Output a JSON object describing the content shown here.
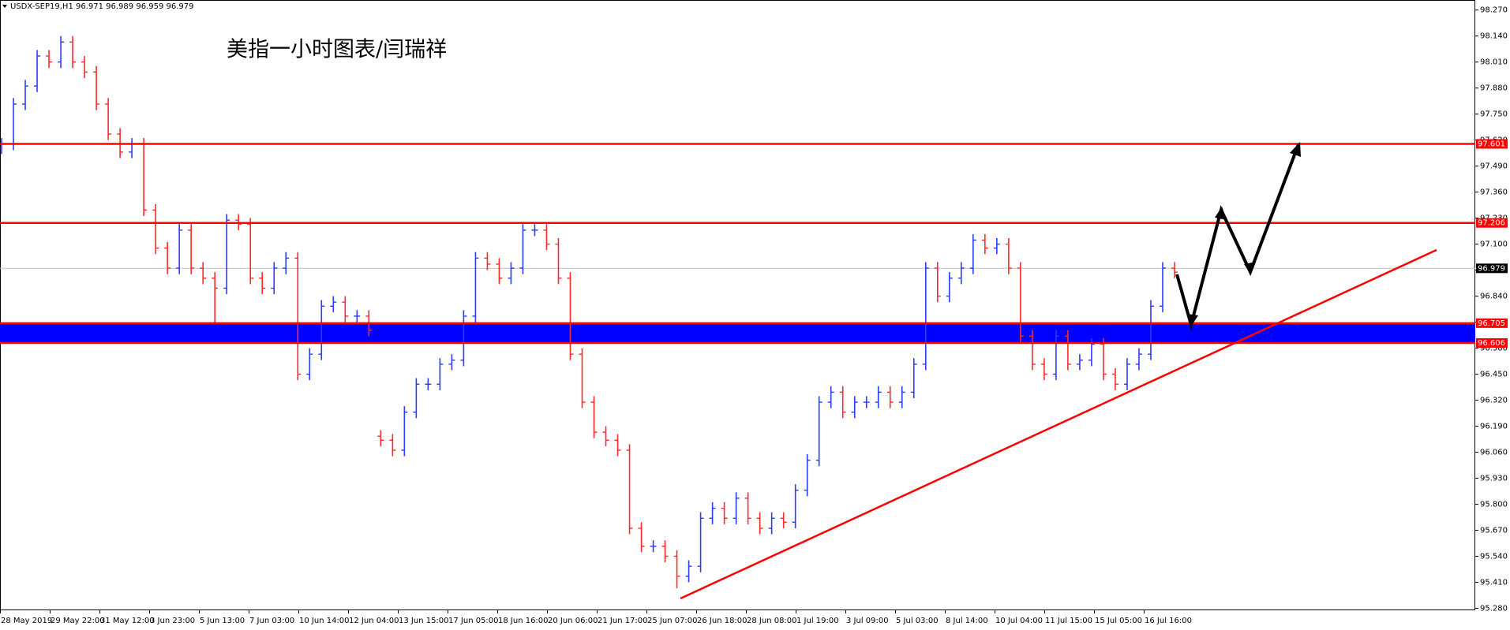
{
  "chart_data": {
    "type": "ohlc",
    "header": "USDX-SEP19,H1  96.971 96.989 96.959 96.979",
    "title": "美指一小时图表/闫瑞祥",
    "up_color": "#2a3cff",
    "down_color": "#ff2a2a",
    "level_color": "#ff0000",
    "band_color": "#0000ff",
    "last_color": "#c0c0c0",
    "ylim": [
      95.27,
      98.32
    ],
    "yticks": [
      {
        "value": 98.27,
        "label": "98.270"
      },
      {
        "value": 98.14,
        "label": "98.140"
      },
      {
        "value": 98.01,
        "label": "98.010"
      },
      {
        "value": 97.88,
        "label": "97.880"
      },
      {
        "value": 97.75,
        "label": "97.750"
      },
      {
        "value": 97.62,
        "label": "97.620"
      },
      {
        "value": 97.49,
        "label": "97.490"
      },
      {
        "value": 97.36,
        "label": "97.360"
      },
      {
        "value": 97.23,
        "label": "97.230"
      },
      {
        "value": 97.1,
        "label": "97.100"
      },
      {
        "value": 96.97,
        "label": "96.970"
      },
      {
        "value": 96.84,
        "label": "96.840"
      },
      {
        "value": 96.71,
        "label": "96.710"
      },
      {
        "value": 96.58,
        "label": "96.580"
      },
      {
        "value": 96.45,
        "label": "96.450"
      },
      {
        "value": 96.32,
        "label": "96.320"
      },
      {
        "value": 96.19,
        "label": "96.190"
      },
      {
        "value": 96.06,
        "label": "96.060"
      },
      {
        "value": 95.93,
        "label": "95.930"
      },
      {
        "value": 95.8,
        "label": "95.800"
      },
      {
        "value": 95.67,
        "label": "95.670"
      },
      {
        "value": 95.54,
        "label": "95.540"
      },
      {
        "value": 95.41,
        "label": "95.410"
      },
      {
        "value": 95.28,
        "label": "95.280"
      }
    ],
    "x_labels": [
      "28 May 2019",
      "29 May 22:00",
      "31 May 12:00",
      "3 Jun 23:00",
      "5 Jun 13:00",
      "7 Jun 03:00",
      "10 Jun 14:00",
      "12 Jun 04:00",
      "13 Jun 15:00",
      "17 Jun 05:00",
      "18 Jun 16:00",
      "20 Jun 06:00",
      "21 Jun 17:00",
      "25 Jun 07:00",
      "26 Jun 18:00",
      "28 Jun 08:00",
      "1 Jul 19:00",
      "3 Jul 09:00",
      "5 Jul 03:00",
      "8 Jul 14:00",
      "10 Jul 04:00",
      "11 Jul 15:00",
      "15 Jul 05:00",
      "16 Jul 16:00"
    ],
    "levels": [
      97.601,
      97.206,
      96.705,
      96.606
    ],
    "last": 96.979,
    "ohlc": [
      [
        97.58,
        97.63,
        97.55,
        97.6
      ],
      [
        97.6,
        97.83,
        97.57,
        97.8
      ],
      [
        97.8,
        97.92,
        97.77,
        97.89
      ],
      [
        97.89,
        98.07,
        97.86,
        98.04
      ],
      [
        98.04,
        98.07,
        97.98,
        98.01
      ],
      [
        98.01,
        98.14,
        97.98,
        98.11
      ],
      [
        98.11,
        98.14,
        97.98,
        98.01
      ],
      [
        98.01,
        98.04,
        97.93,
        97.96
      ],
      [
        97.96,
        97.99,
        97.77,
        97.8
      ],
      [
        97.8,
        97.83,
        97.62,
        97.65
      ],
      [
        97.65,
        97.68,
        97.53,
        97.56
      ],
      [
        97.56,
        97.63,
        97.53,
        97.6
      ],
      [
        97.6,
        97.63,
        97.24,
        97.27
      ],
      [
        97.27,
        97.3,
        97.05,
        97.08
      ],
      [
        97.08,
        97.11,
        96.95,
        96.98
      ],
      [
        96.98,
        97.2,
        96.95,
        97.17
      ],
      [
        97.17,
        97.2,
        96.95,
        96.98
      ],
      [
        96.98,
        97.01,
        96.9,
        96.93
      ],
      [
        96.93,
        96.96,
        96.7,
        96.88
      ],
      [
        96.88,
        97.25,
        96.85,
        97.22
      ],
      [
        97.22,
        97.25,
        97.17,
        97.2
      ],
      [
        97.2,
        97.23,
        96.9,
        96.93
      ],
      [
        96.93,
        96.96,
        96.85,
        96.88
      ],
      [
        96.88,
        97.01,
        96.85,
        96.98
      ],
      [
        96.98,
        97.06,
        96.95,
        97.03
      ],
      [
        97.03,
        97.06,
        96.42,
        96.45
      ],
      [
        96.45,
        96.58,
        96.42,
        96.55
      ],
      [
        96.55,
        96.82,
        96.52,
        96.79
      ],
      [
        96.79,
        96.84,
        96.76,
        96.81
      ],
      [
        96.81,
        96.84,
        96.71,
        96.74
      ],
      [
        96.74,
        96.77,
        96.71,
        96.74
      ],
      [
        96.74,
        96.77,
        96.64,
        96.67
      ],
      [
        96.14,
        96.17,
        96.09,
        96.12
      ],
      [
        96.12,
        96.15,
        96.04,
        96.07
      ],
      [
        96.07,
        96.29,
        96.04,
        96.26
      ],
      [
        96.26,
        96.43,
        96.23,
        96.4
      ],
      [
        96.4,
        96.43,
        96.37,
        96.4
      ],
      [
        96.4,
        96.53,
        96.37,
        96.5
      ],
      [
        96.5,
        96.55,
        96.47,
        96.52
      ],
      [
        96.52,
        96.77,
        96.49,
        96.74
      ],
      [
        96.74,
        97.06,
        96.71,
        97.03
      ],
      [
        97.03,
        97.06,
        96.97,
        97.0
      ],
      [
        97.0,
        97.03,
        96.9,
        96.93
      ],
      [
        96.93,
        97.01,
        96.9,
        96.98
      ],
      [
        96.98,
        97.2,
        96.95,
        97.17
      ],
      [
        97.17,
        97.2,
        97.14,
        97.17
      ],
      [
        97.17,
        97.2,
        97.07,
        97.1
      ],
      [
        97.1,
        97.13,
        96.9,
        96.93
      ],
      [
        96.93,
        96.96,
        96.52,
        96.55
      ],
      [
        96.55,
        96.58,
        96.28,
        96.31
      ],
      [
        96.31,
        96.34,
        96.13,
        96.16
      ],
      [
        96.16,
        96.19,
        96.09,
        96.12
      ],
      [
        96.12,
        96.15,
        96.04,
        96.07
      ],
      [
        96.07,
        96.1,
        95.65,
        95.68
      ],
      [
        95.68,
        95.71,
        95.56,
        95.59
      ],
      [
        95.59,
        95.62,
        95.56,
        95.59
      ],
      [
        95.59,
        95.62,
        95.51,
        95.54
      ],
      [
        95.54,
        95.57,
        95.38,
        95.44
      ],
      [
        95.44,
        95.52,
        95.41,
        95.49
      ],
      [
        95.49,
        95.76,
        95.46,
        95.73
      ],
      [
        95.73,
        95.81,
        95.7,
        95.78
      ],
      [
        95.78,
        95.81,
        95.7,
        95.73
      ],
      [
        95.73,
        95.86,
        95.7,
        95.83
      ],
      [
        95.83,
        95.86,
        95.7,
        95.73
      ],
      [
        95.73,
        95.76,
        95.65,
        95.68
      ],
      [
        95.68,
        95.76,
        95.65,
        95.73
      ],
      [
        95.73,
        95.76,
        95.68,
        95.71
      ],
      [
        95.71,
        95.9,
        95.68,
        95.87
      ],
      [
        95.87,
        96.05,
        95.84,
        96.02
      ],
      [
        96.02,
        96.34,
        95.99,
        96.31
      ],
      [
        96.31,
        96.39,
        96.28,
        96.36
      ],
      [
        96.36,
        96.39,
        96.23,
        96.26
      ],
      [
        96.26,
        96.34,
        96.23,
        96.31
      ],
      [
        96.31,
        96.34,
        96.28,
        96.31
      ],
      [
        96.31,
        96.39,
        96.28,
        96.36
      ],
      [
        96.36,
        96.39,
        96.28,
        96.31
      ],
      [
        96.31,
        96.39,
        96.28,
        96.36
      ],
      [
        96.36,
        96.53,
        96.33,
        96.5
      ],
      [
        96.5,
        97.01,
        96.47,
        96.98
      ],
      [
        96.98,
        97.01,
        96.81,
        96.84
      ],
      [
        96.84,
        96.96,
        96.81,
        96.93
      ],
      [
        96.93,
        97.01,
        96.9,
        96.98
      ],
      [
        96.98,
        97.15,
        96.95,
        97.12
      ],
      [
        97.12,
        97.15,
        97.05,
        97.08
      ],
      [
        97.08,
        97.13,
        97.05,
        97.1
      ],
      [
        97.1,
        97.13,
        96.95,
        96.98
      ],
      [
        96.98,
        97.01,
        96.61,
        96.64
      ],
      [
        96.64,
        96.67,
        96.47,
        96.5
      ],
      [
        96.5,
        96.53,
        96.42,
        96.45
      ],
      [
        96.45,
        96.67,
        96.42,
        96.64
      ],
      [
        96.64,
        96.67,
        96.47,
        96.5
      ],
      [
        96.5,
        96.55,
        96.47,
        96.52
      ],
      [
        96.52,
        96.63,
        96.49,
        96.6
      ],
      [
        96.6,
        96.63,
        96.42,
        96.45
      ],
      [
        96.45,
        96.48,
        96.37,
        96.4
      ],
      [
        96.4,
        96.53,
        96.37,
        96.5
      ],
      [
        96.5,
        96.58,
        96.47,
        96.55
      ],
      [
        96.55,
        96.82,
        96.52,
        96.79
      ],
      [
        96.79,
        97.01,
        96.76,
        96.98
      ],
      [
        96.98,
        97.01,
        96.93,
        96.96
      ]
    ]
  }
}
